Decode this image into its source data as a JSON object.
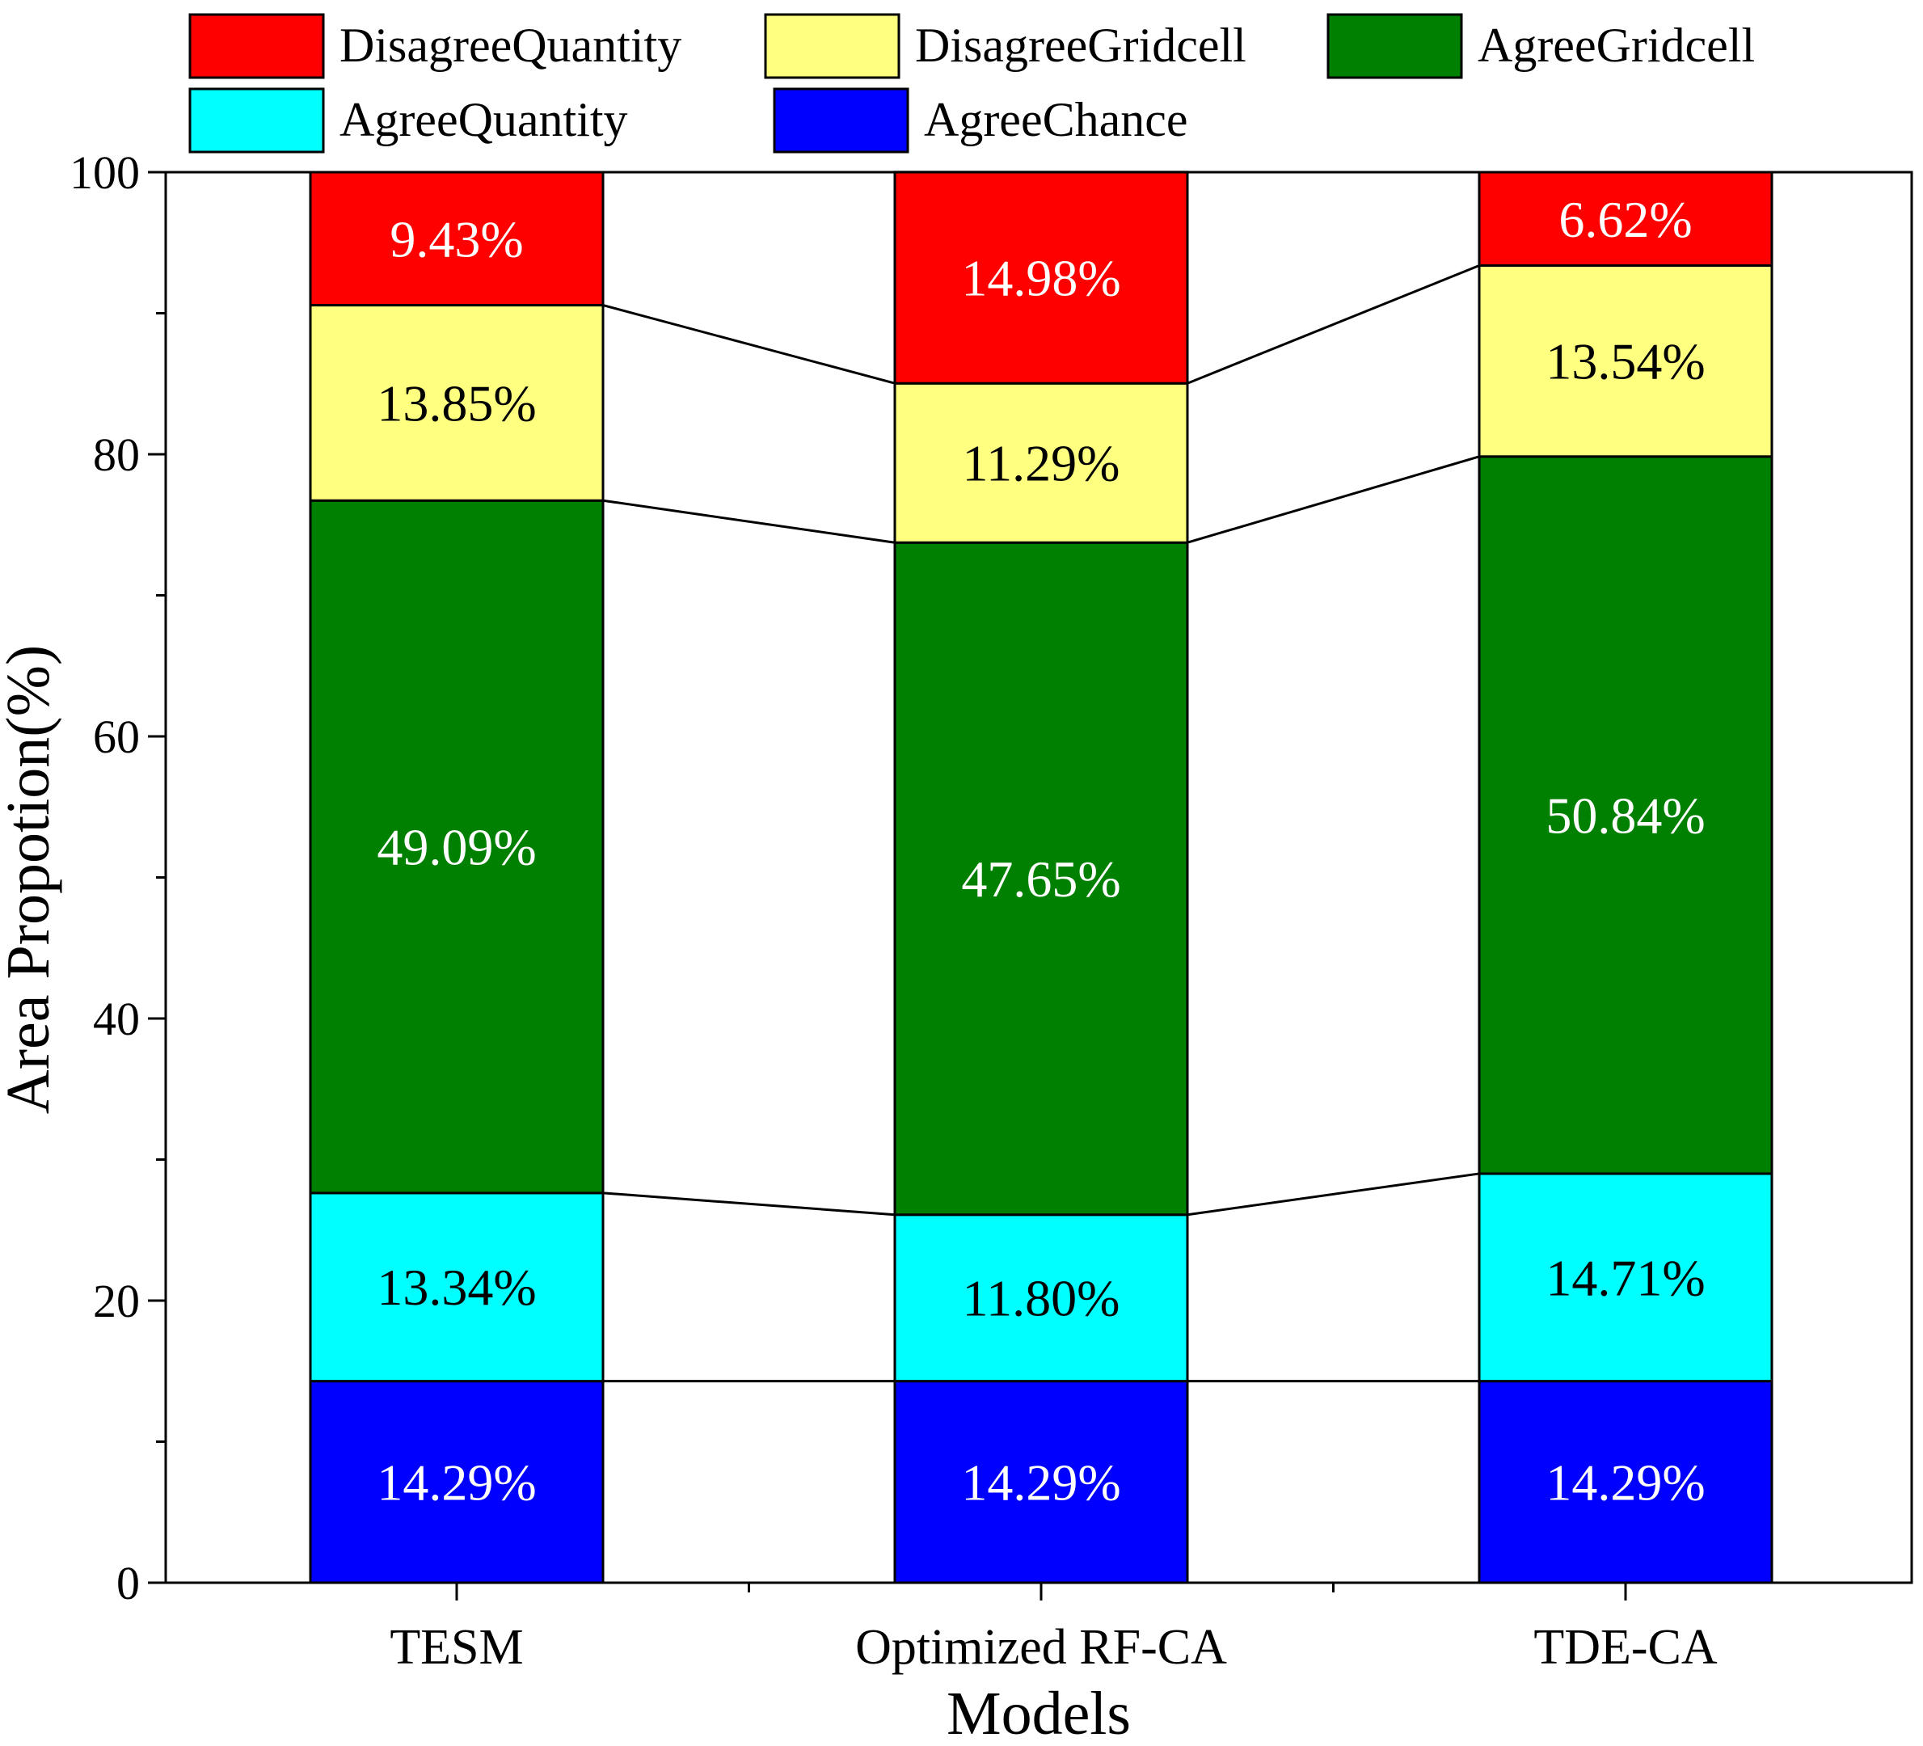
{
  "chart_data": {
    "type": "stacked-bar",
    "title": "",
    "xlabel": "Models",
    "ylabel": "Area Propotion(%)",
    "ylim": [
      0,
      100
    ],
    "yticks": [
      0,
      20,
      40,
      60,
      80,
      100
    ],
    "categories": [
      "TESM",
      "Optimized RF-CA",
      "TDE-CA"
    ],
    "series": [
      {
        "name": "AgreeChance",
        "color": "#0000ff",
        "label_color": "#ffffff",
        "values": [
          14.29,
          14.29,
          14.29
        ],
        "labels": [
          "14.29%",
          "14.29%",
          "14.29%"
        ]
      },
      {
        "name": "AgreeQuantity",
        "color": "#00ffff",
        "label_color": "#000000",
        "values": [
          13.34,
          11.8,
          14.71
        ],
        "labels": [
          "13.34%",
          "11.80%",
          "14.71%"
        ]
      },
      {
        "name": "AgreeGridcell",
        "color": "#008000",
        "label_color": "#ffffff",
        "values": [
          49.09,
          47.65,
          50.84
        ],
        "labels": [
          "49.09%",
          "47.65%",
          "50.84%"
        ]
      },
      {
        "name": "DisagreeGridcell",
        "color": "#ffff80",
        "label_color": "#000000",
        "values": [
          13.85,
          11.29,
          13.54
        ],
        "labels": [
          "13.85%",
          "11.29%",
          "13.54%"
        ]
      },
      {
        "name": "DisagreeQuantity",
        "color": "#ff0000",
        "label_color": "#ffffff",
        "values": [
          9.43,
          14.98,
          6.62
        ],
        "labels": [
          "9.43%",
          "14.98%",
          "6.62%"
        ]
      }
    ],
    "legend": {
      "placement": "top",
      "entries": [
        "DisagreeQuantity",
        "DisagreeGridcell",
        "AgreeGridcell",
        "AgreeQuantity",
        "AgreeChance"
      ]
    }
  }
}
